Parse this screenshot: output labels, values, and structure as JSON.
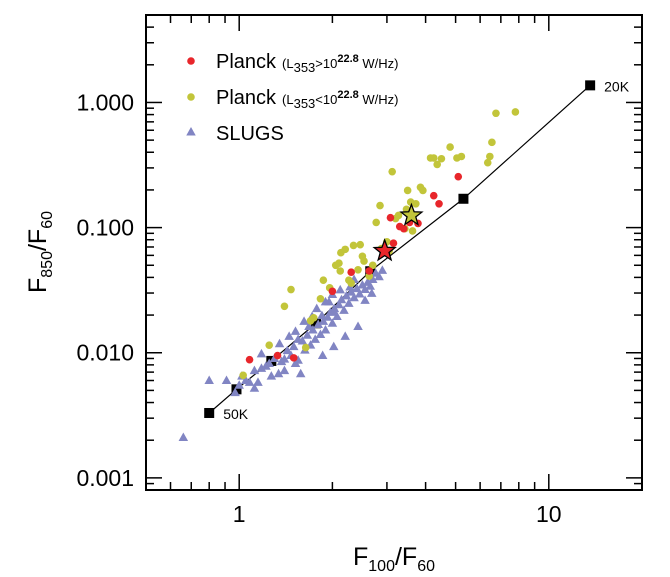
{
  "chart_data": {
    "type": "scatter",
    "title": "",
    "xlabel": {
      "main": "F",
      "sub1": "100",
      "sep": "/F",
      "sub2": "60"
    },
    "ylabel": {
      "main": "F",
      "sub1": "850",
      "sep": "/F",
      "sub2": "60"
    },
    "xscale": "log",
    "yscale": "log",
    "xlim": [
      0.5,
      20
    ],
    "ylim": [
      0.0008,
      5
    ],
    "grid": false,
    "legend_position": "top-left",
    "x_ticks": [
      {
        "value": 1,
        "label": "1"
      },
      {
        "value": 10,
        "label": "10"
      }
    ],
    "y_ticks": [
      {
        "value": 0.001,
        "label": "0.001"
      },
      {
        "value": 0.01,
        "label": "0.010"
      },
      {
        "value": 0.1,
        "label": "0.100"
      },
      {
        "value": 1,
        "label": "1.000"
      }
    ],
    "legend": [
      {
        "series": "planck_high",
        "name": "Planck",
        "qual_pre": "(L",
        "qual_sub": "353",
        "qual_mid": ">10",
        "qual_sup": "22.8",
        "qual_post": " W/Hz)"
      },
      {
        "series": "planck_low",
        "name": "Planck",
        "qual_pre": "(L",
        "qual_sub": "353",
        "qual_mid": "<10",
        "qual_sup": "22.8",
        "qual_post": " W/Hz)"
      },
      {
        "series": "slugs",
        "name": "SLUGS"
      }
    ],
    "series": [
      {
        "id": "planck_high",
        "marker": "circle",
        "color": "#e8262b",
        "points": [
          [
            1.08,
            0.0088
          ],
          [
            1.33,
            0.0095
          ],
          [
            1.5,
            0.0091
          ],
          [
            2.0,
            0.031
          ],
          [
            2.3,
            0.044
          ],
          [
            2.63,
            0.045
          ],
          [
            3.08,
            0.12
          ],
          [
            3.15,
            0.075
          ],
          [
            3.3,
            0.102
          ],
          [
            3.4,
            0.098
          ],
          [
            3.55,
            0.11
          ],
          [
            3.78,
            0.108
          ],
          [
            4.25,
            0.18
          ],
          [
            4.42,
            0.155
          ],
          [
            5.1,
            0.255
          ]
        ]
      },
      {
        "id": "planck_low",
        "marker": "circle",
        "color": "#c2c53a",
        "points": [
          [
            1.03,
            0.0066
          ],
          [
            1.25,
            0.0115
          ],
          [
            1.4,
            0.0235
          ],
          [
            1.47,
            0.032
          ],
          [
            1.64,
            0.011
          ],
          [
            1.7,
            0.018
          ],
          [
            1.74,
            0.019
          ],
          [
            1.83,
            0.027
          ],
          [
            1.87,
            0.038
          ],
          [
            1.96,
            0.033
          ],
          [
            2.05,
            0.05
          ],
          [
            2.1,
            0.052
          ],
          [
            2.12,
            0.045
          ],
          [
            2.13,
            0.063
          ],
          [
            2.2,
            0.067
          ],
          [
            2.26,
            0.038
          ],
          [
            2.3,
            0.036
          ],
          [
            2.34,
            0.072
          ],
          [
            2.42,
            0.046
          ],
          [
            2.46,
            0.073
          ],
          [
            2.5,
            0.059
          ],
          [
            2.53,
            0.054
          ],
          [
            2.63,
            0.041
          ],
          [
            2.7,
            0.05
          ],
          [
            2.77,
            0.11
          ],
          [
            2.85,
            0.15
          ],
          [
            2.88,
            0.068
          ],
          [
            3.0,
            0.077
          ],
          [
            3.05,
            0.065
          ],
          [
            3.12,
            0.28
          ],
          [
            3.2,
            0.118
          ],
          [
            3.27,
            0.125
          ],
          [
            3.43,
            0.098
          ],
          [
            3.47,
            0.14
          ],
          [
            3.5,
            0.198
          ],
          [
            3.58,
            0.16
          ],
          [
            3.63,
            0.094
          ],
          [
            3.72,
            0.155
          ],
          [
            3.85,
            0.21
          ],
          [
            3.92,
            0.198
          ],
          [
            4.15,
            0.36
          ],
          [
            4.25,
            0.36
          ],
          [
            4.36,
            0.32
          ],
          [
            4.5,
            0.355
          ],
          [
            4.8,
            0.44
          ],
          [
            5.05,
            0.36
          ],
          [
            5.22,
            0.37
          ],
          [
            6.35,
            0.33
          ],
          [
            6.45,
            0.37
          ],
          [
            6.55,
            0.48
          ],
          [
            6.75,
            0.82
          ],
          [
            7.8,
            0.84
          ]
        ]
      },
      {
        "id": "slugs",
        "marker": "triangle",
        "color": "#8185c3",
        "points": [
          [
            0.66,
            0.0021
          ],
          [
            0.8,
            0.006
          ],
          [
            0.91,
            0.006
          ],
          [
            0.97,
            0.0048
          ],
          [
            1.0,
            0.0055
          ],
          [
            1.02,
            0.0065
          ],
          [
            1.05,
            0.006
          ],
          [
            1.08,
            0.0058
          ],
          [
            1.12,
            0.0072
          ],
          [
            1.15,
            0.0058
          ],
          [
            1.18,
            0.0075
          ],
          [
            1.22,
            0.0078
          ],
          [
            1.25,
            0.0082
          ],
          [
            1.3,
            0.009
          ],
          [
            1.34,
            0.0068
          ],
          [
            1.37,
            0.0085
          ],
          [
            1.4,
            0.0089
          ],
          [
            1.43,
            0.0104
          ],
          [
            1.47,
            0.0095
          ],
          [
            1.5,
            0.0112
          ],
          [
            1.52,
            0.0082
          ],
          [
            1.55,
            0.0087
          ],
          [
            1.6,
            0.0124
          ],
          [
            1.63,
            0.0105
          ],
          [
            1.66,
            0.0138
          ],
          [
            1.7,
            0.0115
          ],
          [
            1.73,
            0.0152
          ],
          [
            1.76,
            0.0128
          ],
          [
            1.8,
            0.0168
          ],
          [
            1.83,
            0.014
          ],
          [
            1.87,
            0.0178
          ],
          [
            1.9,
            0.0152
          ],
          [
            1.93,
            0.0192
          ],
          [
            1.97,
            0.021
          ],
          [
            2.0,
            0.0172
          ],
          [
            2.03,
            0.0225
          ],
          [
            2.07,
            0.0195
          ],
          [
            2.1,
            0.0242
          ],
          [
            2.14,
            0.0265
          ],
          [
            2.18,
            0.0218
          ],
          [
            2.22,
            0.0285
          ],
          [
            2.26,
            0.0248
          ],
          [
            2.3,
            0.0305
          ],
          [
            2.35,
            0.0275
          ],
          [
            2.4,
            0.0325
          ],
          [
            2.45,
            0.0295
          ],
          [
            2.5,
            0.0348
          ],
          [
            2.55,
            0.032
          ],
          [
            2.6,
            0.0365
          ],
          [
            2.65,
            0.034
          ],
          [
            2.7,
            0.0385
          ],
          [
            2.76,
            0.0432
          ],
          [
            2.83,
            0.0405
          ],
          [
            2.9,
            0.0455
          ],
          [
            1.45,
            0.0135
          ],
          [
            1.62,
            0.0178
          ],
          [
            1.78,
            0.0225
          ],
          [
            1.95,
            0.0255
          ],
          [
            2.12,
            0.0318
          ],
          [
            2.28,
            0.0335
          ],
          [
            1.18,
            0.0098
          ],
          [
            1.35,
            0.0118
          ],
          [
            1.52,
            0.0148
          ],
          [
            1.68,
            0.0162
          ],
          [
            1.85,
            0.0198
          ],
          [
            2.02,
            0.0212
          ],
          [
            1.9,
            0.0255
          ],
          [
            1.58,
            0.0068
          ],
          [
            1.86,
            0.0095
          ],
          [
            2.02,
            0.0112
          ],
          [
            2.2,
            0.0135
          ],
          [
            2.42,
            0.0162
          ],
          [
            1.12,
            0.0052
          ],
          [
            1.27,
            0.0065
          ],
          [
            1.4,
            0.0072
          ],
          [
            1.55,
            0.0128
          ],
          [
            1.72,
            0.0195
          ],
          [
            2.0,
            0.0292
          ],
          [
            2.35,
            0.0385
          ],
          [
            2.55,
            0.0262
          ],
          [
            2.68,
            0.0298
          ]
        ]
      }
    ],
    "stars": [
      {
        "x": 2.95,
        "y": 0.065,
        "color": "#e8262b"
      },
      {
        "x": 3.6,
        "y": 0.125,
        "color": "#c2c53a"
      }
    ],
    "model_curve": {
      "color": "#000000",
      "points": [
        [
          0.8,
          0.0033
        ],
        [
          0.98,
          0.0051
        ],
        [
          1.27,
          0.0086
        ],
        [
          1.77,
          0.0172
        ],
        [
          2.65,
          0.0448
        ],
        [
          5.3,
          0.17
        ],
        [
          13.6,
          1.37
        ]
      ],
      "labels": [
        {
          "text": "50K",
          "x": 0.8,
          "y": 0.0033
        },
        {
          "text": "20K",
          "x": 13.6,
          "y": 1.37
        }
      ]
    }
  }
}
